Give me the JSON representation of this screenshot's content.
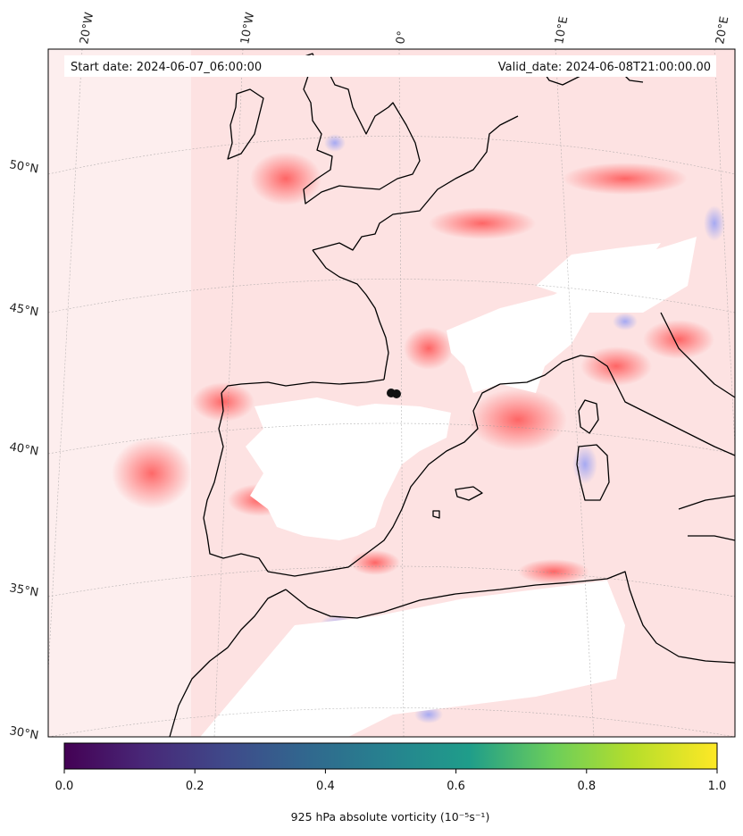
{
  "map": {
    "start_label": "Start date: 2024-06-07_06:00:00",
    "valid_label": "Valid_date: 2024-06-08T21:00:00.00",
    "lon_labels": [
      "20°W",
      "10°W",
      "0°",
      "10°E",
      "20°E"
    ],
    "lat_labels": [
      "50°N",
      "45°N",
      "40°N",
      "35°N",
      "30°N"
    ],
    "colors": {
      "land_outline": "#000000",
      "positive_shading": "#ff5a5a",
      "negative_shading": "#6f86ff",
      "masked_terrain": "#ffffff",
      "graticule": "#9a9a9a",
      "marker": "#111111"
    }
  },
  "colorbar": {
    "colormap": "viridis",
    "ticks": [
      "0.0",
      "0.2",
      "0.4",
      "0.6",
      "0.8",
      "1.0"
    ],
    "range": [
      0.0,
      1.0
    ],
    "label": "925 hPa absolute vorticity (10⁻⁵s⁻¹)",
    "stops": [
      "#440154",
      "#482777",
      "#3f4a8a",
      "#31678e",
      "#26838f",
      "#1f9d8a",
      "#6cce5a",
      "#b6de2b",
      "#fee825"
    ]
  }
}
